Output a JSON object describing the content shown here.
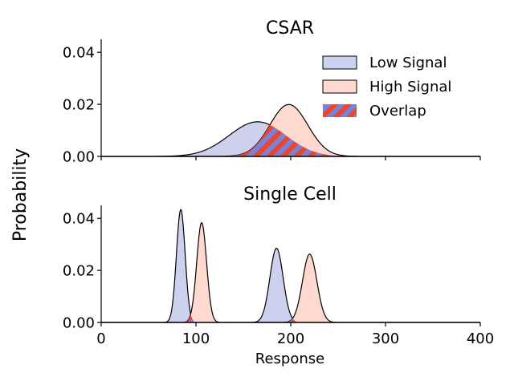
{
  "figure": {
    "ylabel": "Probability",
    "xlabel": "Response"
  },
  "colors": {
    "low_fill": "#cdd1ed",
    "high_fill": "#ffd8cf",
    "overlap_a": "#e8462e",
    "overlap_b": "#7b82d6",
    "outline": "#000000"
  },
  "legend": {
    "items": [
      {
        "label": "Low Signal",
        "style": "low"
      },
      {
        "label": "High Signal",
        "style": "high"
      },
      {
        "label": "Overlap",
        "style": "overlap"
      }
    ]
  },
  "chart_data": [
    {
      "type": "area",
      "title": "CSAR",
      "xlim": [
        0,
        400
      ],
      "ylim": [
        0,
        0.045
      ],
      "yticks": [
        {
          "value": 0.0,
          "label": "0.00"
        },
        {
          "value": 0.02,
          "label": "0.02"
        },
        {
          "value": 0.04,
          "label": "0.04"
        }
      ],
      "xticks": [
        0,
        100,
        200,
        300,
        400
      ],
      "x_tick_labels_visible": false,
      "legend_position": "top-right",
      "series": [
        {
          "name": "Low Signal",
          "style": "low",
          "components": [
            {
              "weight": 1.0,
              "mean": 165,
              "sd": 30
            }
          ]
        },
        {
          "name": "High Signal",
          "style": "high",
          "components": [
            {
              "weight": 1.0,
              "mean": 198,
              "sd": 20
            }
          ]
        }
      ]
    },
    {
      "type": "area",
      "title": "Single Cell",
      "xlim": [
        0,
        400
      ],
      "ylim": [
        0,
        0.045
      ],
      "yticks": [
        {
          "value": 0.0,
          "label": "0.00"
        },
        {
          "value": 0.02,
          "label": "0.02"
        },
        {
          "value": 0.04,
          "label": "0.04"
        }
      ],
      "xticks": [
        {
          "value": 0,
          "label": "0"
        },
        {
          "value": 100,
          "label": "100"
        },
        {
          "value": 200,
          "label": "200"
        },
        {
          "value": 300,
          "label": "300"
        },
        {
          "value": 400,
          "label": "400"
        }
      ],
      "x_tick_labels_visible": true,
      "series": [
        {
          "name": "Low Signal",
          "style": "low",
          "components": [
            {
              "weight": 0.5,
              "mean": 84,
              "sd": 4.6
            },
            {
              "weight": 0.5,
              "mean": 185,
              "sd": 7.0
            }
          ]
        },
        {
          "name": "High Signal",
          "style": "high",
          "components": [
            {
              "weight": 0.5,
              "mean": 106,
              "sd": 5.2
            },
            {
              "weight": 0.5,
              "mean": 220,
              "sd": 7.6
            }
          ]
        }
      ]
    }
  ]
}
